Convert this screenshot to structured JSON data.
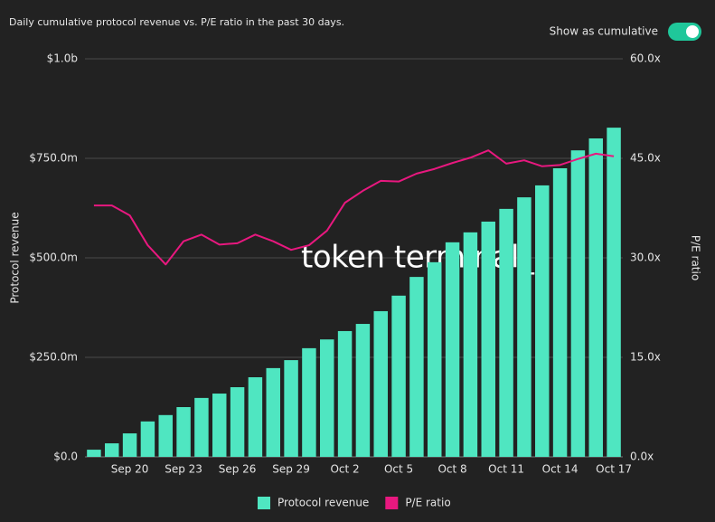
{
  "header": {
    "title": "Daily cumulative protocol revenue vs. P/E ratio in the past 30 days.",
    "toggle_label": "Show as cumulative",
    "toggle_on": true
  },
  "watermark": "token terminal_",
  "chart_data": {
    "type": "combo",
    "y_label": "Protocol revenue",
    "y2_label": "P/E ratio",
    "categories": [
      null,
      null,
      "Sep 20",
      null,
      null,
      "Sep 23",
      null,
      null,
      "Sep 26",
      null,
      null,
      "Sep 29",
      null,
      null,
      "Oct 2",
      null,
      null,
      "Oct 5",
      null,
      null,
      "Oct 8",
      null,
      null,
      "Oct 11",
      null,
      null,
      "Oct 14",
      null,
      null,
      "Oct 17"
    ],
    "series": [
      {
        "name": "Protocol revenue",
        "type": "bar",
        "color": "#4fe6c1",
        "values": [
          18,
          34,
          59,
          89,
          105,
          125,
          148,
          159,
          175,
          200,
          223,
          243,
          273,
          295,
          316,
          334,
          366,
          405,
          452,
          489,
          539,
          564,
          591,
          623,
          652,
          682,
          725,
          770,
          800,
          827
        ]
      },
      {
        "name": "P/E ratio",
        "type": "line",
        "axis": "y2",
        "color": "#e8187f",
        "values": [
          37.9,
          37.9,
          36.4,
          31.9,
          29.0,
          32.5,
          33.5,
          32.0,
          32.2,
          33.5,
          32.5,
          31.2,
          31.9,
          34.1,
          38.3,
          40.1,
          41.6,
          41.5,
          42.7,
          43.4,
          44.3,
          45.1,
          46.2,
          44.2,
          44.7,
          43.8,
          44.0,
          44.9,
          45.7,
          45.3
        ]
      }
    ],
    "ylim": [
      0,
      1000
    ],
    "yticks": [
      {
        "value": 0,
        "label": "$0.0"
      },
      {
        "value": 250,
        "label": "$250.0m"
      },
      {
        "value": 500,
        "label": "$500.0m"
      },
      {
        "value": 750,
        "label": "$750.0m"
      },
      {
        "value": 1000,
        "label": "$1.0b"
      }
    ],
    "y2lim": [
      0,
      60
    ],
    "y2ticks": [
      {
        "value": 0,
        "label": "0.0x"
      },
      {
        "value": 15,
        "label": "15.0x"
      },
      {
        "value": 30,
        "label": "30.0x"
      },
      {
        "value": 45,
        "label": "45.0x"
      },
      {
        "value": 60,
        "label": "60.0x"
      }
    ],
    "grid": true,
    "legend": "bottom"
  }
}
